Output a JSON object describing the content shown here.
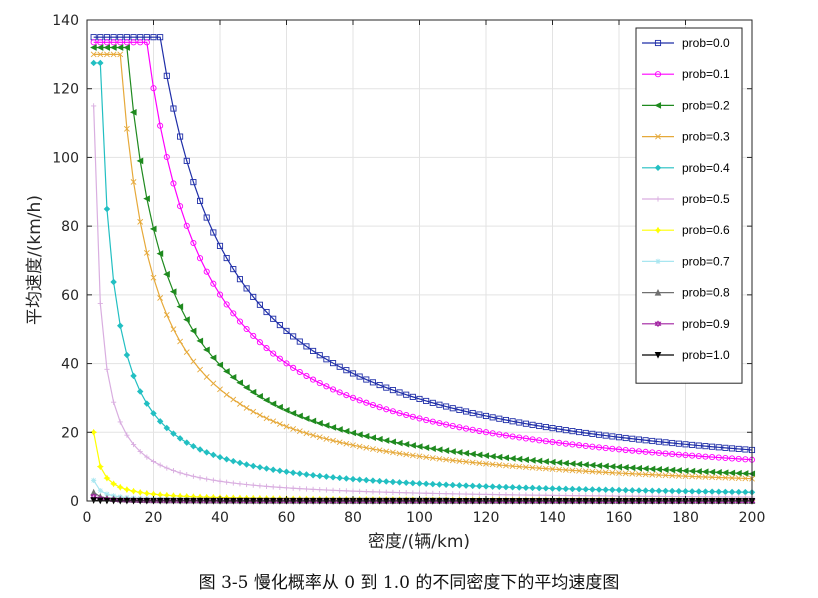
{
  "caption": "图 3-5  慢化概率从 0 到 1.0 的不同密度下的平均速度图",
  "chart_data": {
    "type": "line",
    "xlabel": "密度/(辆/km)",
    "ylabel": "平均速度/(km/h)",
    "xlim": [
      0,
      200
    ],
    "ylim": [
      0,
      140
    ],
    "xticks": [
      "0",
      "20",
      "40",
      "60",
      "80",
      "100",
      "120",
      "140",
      "160",
      "180",
      "200"
    ],
    "yticks": [
      "0",
      "20",
      "40",
      "60",
      "80",
      "100",
      "120",
      "140"
    ],
    "grid": true,
    "legend_position": "top-right",
    "series": [
      {
        "name": "prob=0.0",
        "color": "#1f2ea8",
        "marker": "square",
        "plateau": 135,
        "breakpoint": 22
      },
      {
        "name": "prob=0.1",
        "color": "#ff00ff",
        "marker": "circle",
        "plateau": 133.5,
        "breakpoint": 18
      },
      {
        "name": "prob=0.2",
        "color": "#1f8a1f",
        "marker": "triangle-left",
        "plateau": 132,
        "breakpoint": 12
      },
      {
        "name": "prob=0.3",
        "color": "#e6a93a",
        "marker": "x",
        "plateau": 130,
        "breakpoint": 10
      },
      {
        "name": "prob=0.4",
        "color": "#22bfc2",
        "marker": "diamond",
        "plateau": 127.5,
        "breakpoint": 4
      },
      {
        "name": "prob=0.5",
        "color": "#d9aee0",
        "marker": "plus",
        "plateau": 115,
        "breakpoint": 2
      },
      {
        "name": "prob=0.6",
        "color": "#ffff00",
        "marker": "star",
        "plateau": 20,
        "breakpoint": 2
      },
      {
        "name": "prob=0.7",
        "color": "#a8e6f0",
        "marker": "asterisk",
        "plateau": 6,
        "breakpoint": 2
      },
      {
        "name": "prob=0.8",
        "color": "#707070",
        "marker": "triangle-up",
        "plateau": 2.5,
        "breakpoint": 2
      },
      {
        "name": "prob=0.9",
        "color": "#a020a0",
        "marker": "hexagram",
        "plateau": 1.3,
        "breakpoint": 2
      },
      {
        "name": "prob=1.0",
        "color": "#000000",
        "marker": "triangle-down",
        "plateau": 0.2,
        "breakpoint": 2
      }
    ]
  }
}
